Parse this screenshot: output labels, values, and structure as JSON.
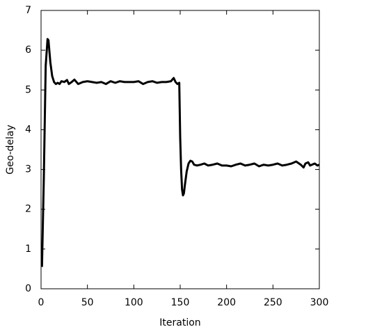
{
  "chart_data": {
    "type": "line",
    "xlabel": "Iteration",
    "ylabel": "Geo-delay",
    "x": [
      1,
      3,
      5,
      7,
      8,
      10,
      12,
      14,
      16,
      18,
      20,
      22,
      25,
      28,
      30,
      33,
      36,
      40,
      45,
      50,
      55,
      60,
      65,
      70,
      75,
      80,
      85,
      90,
      95,
      100,
      105,
      110,
      115,
      120,
      125,
      130,
      135,
      140,
      143,
      145,
      147,
      149,
      150,
      151,
      152,
      153,
      154,
      155,
      157,
      159,
      161,
      163,
      165,
      168,
      172,
      176,
      180,
      185,
      190,
      195,
      200,
      205,
      210,
      215,
      220,
      225,
      230,
      235,
      240,
      245,
      250,
      255,
      260,
      265,
      270,
      275,
      280,
      283,
      285,
      288,
      290,
      295,
      298,
      300
    ],
    "values": [
      0.55,
      2.8,
      5.6,
      6.28,
      6.25,
      5.7,
      5.35,
      5.2,
      5.15,
      5.18,
      5.15,
      5.22,
      5.2,
      5.25,
      5.15,
      5.2,
      5.26,
      5.15,
      5.2,
      5.22,
      5.2,
      5.18,
      5.2,
      5.15,
      5.22,
      5.18,
      5.22,
      5.2,
      5.2,
      5.2,
      5.22,
      5.15,
      5.2,
      5.22,
      5.18,
      5.2,
      5.2,
      5.22,
      5.3,
      5.2,
      5.15,
      5.18,
      3.8,
      3.0,
      2.5,
      2.35,
      2.4,
      2.6,
      2.95,
      3.15,
      3.22,
      3.2,
      3.12,
      3.1,
      3.12,
      3.15,
      3.1,
      3.12,
      3.15,
      3.1,
      3.1,
      3.08,
      3.12,
      3.15,
      3.1,
      3.12,
      3.15,
      3.08,
      3.12,
      3.1,
      3.12,
      3.15,
      3.1,
      3.12,
      3.15,
      3.2,
      3.12,
      3.05,
      3.15,
      3.18,
      3.1,
      3.15,
      3.1,
      3.12
    ],
    "color": "#000000",
    "xlim": [
      0,
      300
    ],
    "xticks": [
      0,
      50,
      100,
      150,
      200,
      250,
      300
    ],
    "ylim": [
      0,
      7
    ],
    "yticks": [
      0,
      1,
      2,
      3,
      4,
      5,
      6,
      7
    ]
  }
}
